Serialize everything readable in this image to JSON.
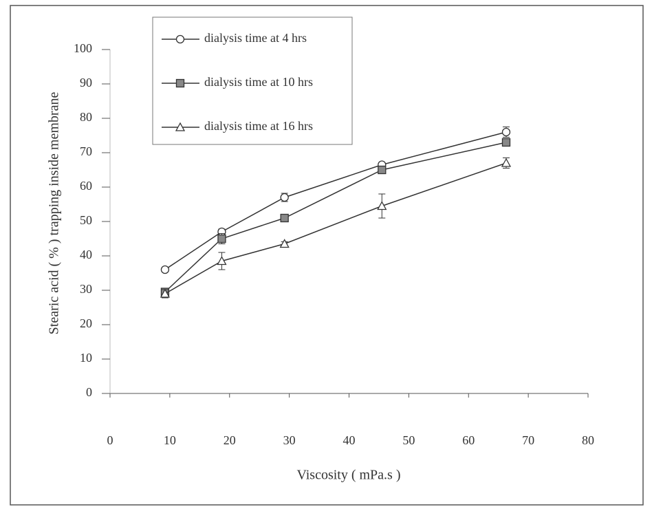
{
  "chart_data": {
    "type": "line",
    "xlabel": "Viscosity ( mPa.s )",
    "ylabel": "Stearic acid ( % ) trapping inside membrane",
    "x": [
      9.2,
      18.7,
      29.2,
      45.5,
      66.3
    ],
    "series": [
      {
        "name": "dialysis time at 4 hrs",
        "color": "#333333",
        "marker": "circle",
        "values": [
          36,
          47,
          57,
          66.5,
          76
        ],
        "errors": [
          0.5,
          0.8,
          1.2,
          0.6,
          1.5
        ]
      },
      {
        "name": "dialysis time at 10 hrs",
        "color": "#333333",
        "marker": "square",
        "values": [
          29.5,
          45,
          51,
          65,
          73
        ],
        "errors": [
          0.5,
          1.5,
          0.5,
          0.8,
          0.8
        ]
      },
      {
        "name": "dialysis time at 16 hrs",
        "color": "#333333",
        "marker": "triangle",
        "values": [
          29,
          38.5,
          43.5,
          54.5,
          67
        ],
        "errors": [
          1.2,
          2.5,
          0.6,
          3.5,
          1.5
        ]
      }
    ],
    "xlim": [
      0,
      80
    ],
    "ylim": [
      0,
      100
    ],
    "xticks": [
      0,
      10,
      20,
      30,
      40,
      50,
      60,
      70,
      80
    ],
    "yticks": [
      0,
      10,
      20,
      30,
      40,
      50,
      60,
      70,
      80,
      90,
      100
    ],
    "legend": "upper-left",
    "grid": false
  }
}
